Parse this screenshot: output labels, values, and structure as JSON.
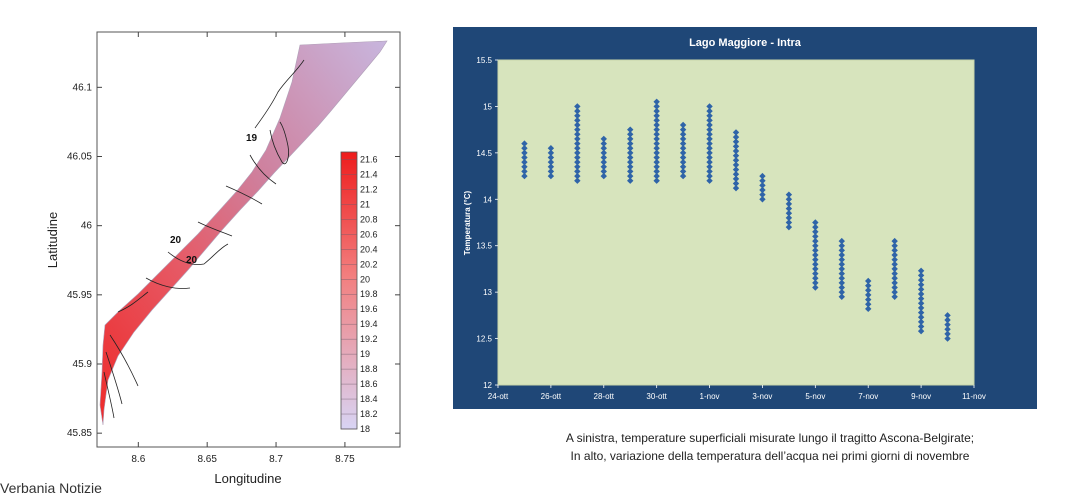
{
  "colors": {
    "lake_warm": "#f03a3a",
    "lake_cool": "#c9b7dc",
    "panel_bg": "#1f4777",
    "plot_bg": "#d7e4bd",
    "marker": "#2f64a8"
  },
  "chart_data": [
    {
      "type": "contour",
      "xlabel": "Longitudine",
      "ylabel": "Latitudine",
      "x_ticks": [
        "8.6",
        "8.65",
        "8.7",
        "8.75"
      ],
      "y_ticks": [
        "45.85",
        "45.9",
        "45.95",
        "46",
        "46.05",
        "46.1"
      ],
      "xlim": [
        8.57,
        8.79
      ],
      "ylim": [
        45.84,
        46.14
      ],
      "colorbar": {
        "min": 18,
        "max": 21.7,
        "labels": [
          "21.6",
          "21.4",
          "21.2",
          "21",
          "20.8",
          "20.6",
          "20.4",
          "20.2",
          "20",
          "19.8",
          "19.6",
          "19.4",
          "19.2",
          "19",
          "18.8",
          "18.6",
          "18.4",
          "18.2",
          "18"
        ]
      },
      "contour_labels": [
        "19",
        "20",
        "20"
      ]
    },
    {
      "type": "scatter",
      "title": "Lago Maggiore - Intra",
      "ylabel": "Temperatura  (°C)",
      "x_ticks": [
        "24-ott",
        "26-ott",
        "28-ott",
        "30-ott",
        "1-nov",
        "3-nov",
        "5-nov",
        "7-nov",
        "9-nov",
        "11-nov"
      ],
      "y_ticks": [
        "15.5",
        "15",
        "14.5",
        "14",
        "13.5",
        "13",
        "12.5",
        "12"
      ],
      "ylim": [
        12,
        15.5
      ],
      "x_start_day": 0,
      "series": [
        {
          "values": [
            {
              "day": 1,
              "min": 14.25,
              "max": 14.62
            },
            {
              "day": 2,
              "min": 14.25,
              "max": 14.55
            },
            {
              "day": 3,
              "min": 14.2,
              "max": 15.0
            },
            {
              "day": 4,
              "min": 14.25,
              "max": 14.68
            },
            {
              "day": 5,
              "min": 14.2,
              "max": 14.75
            },
            {
              "day": 6,
              "min": 14.2,
              "max": 15.05
            },
            {
              "day": 7,
              "min": 14.25,
              "max": 14.8
            },
            {
              "day": 8,
              "min": 14.2,
              "max": 15.0
            },
            {
              "day": 9,
              "min": 14.12,
              "max": 14.75
            },
            {
              "day": 10,
              "min": 14.0,
              "max": 14.25
            },
            {
              "day": 11,
              "min": 13.7,
              "max": 14.05
            },
            {
              "day": 12,
              "min": 13.05,
              "max": 13.75
            },
            {
              "day": 13,
              "min": 12.95,
              "max": 13.55
            },
            {
              "day": 14,
              "min": 12.82,
              "max": 13.12
            },
            {
              "day": 15,
              "min": 12.95,
              "max": 13.55
            },
            {
              "day": 16,
              "min": 12.58,
              "max": 13.25
            },
            {
              "day": 17,
              "min": 12.5,
              "max": 12.75
            }
          ]
        }
      ]
    }
  ],
  "captions": {
    "line1": "A sinistra, temperature superficiali misurate lungo il tragitto Ascona-Belgirate;",
    "line2": "In alto, variazione della temperatura dell’acqua nei primi giorni di novembre"
  },
  "source": "Verbania Notizie"
}
